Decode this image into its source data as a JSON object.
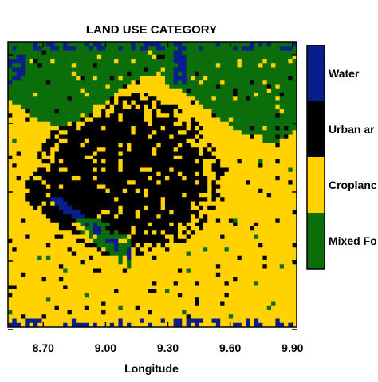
{
  "chart_data": {
    "type": "heatmap",
    "title": "LAND USE CATEGORY",
    "xlabel": "Longitude",
    "ylabel": "",
    "x_ticks": [
      "8.70",
      "9.00",
      "9.30",
      "9.60",
      "9.90"
    ],
    "x_tick_values": [
      8.7,
      9.0,
      9.3,
      9.6,
      9.9
    ],
    "xlim": [
      8.53,
      9.92
    ],
    "legend_position": "right",
    "categories": [
      {
        "name": "Water",
        "color": "#0a1d8c"
      },
      {
        "name": "Urban ar",
        "color": "#000000"
      },
      {
        "name": "Croplanc",
        "color": "#ffd200"
      },
      {
        "name": "Mixed Fo",
        "color": "#0b6e0b"
      }
    ],
    "grid_resolution": [
      68,
      68
    ]
  }
}
